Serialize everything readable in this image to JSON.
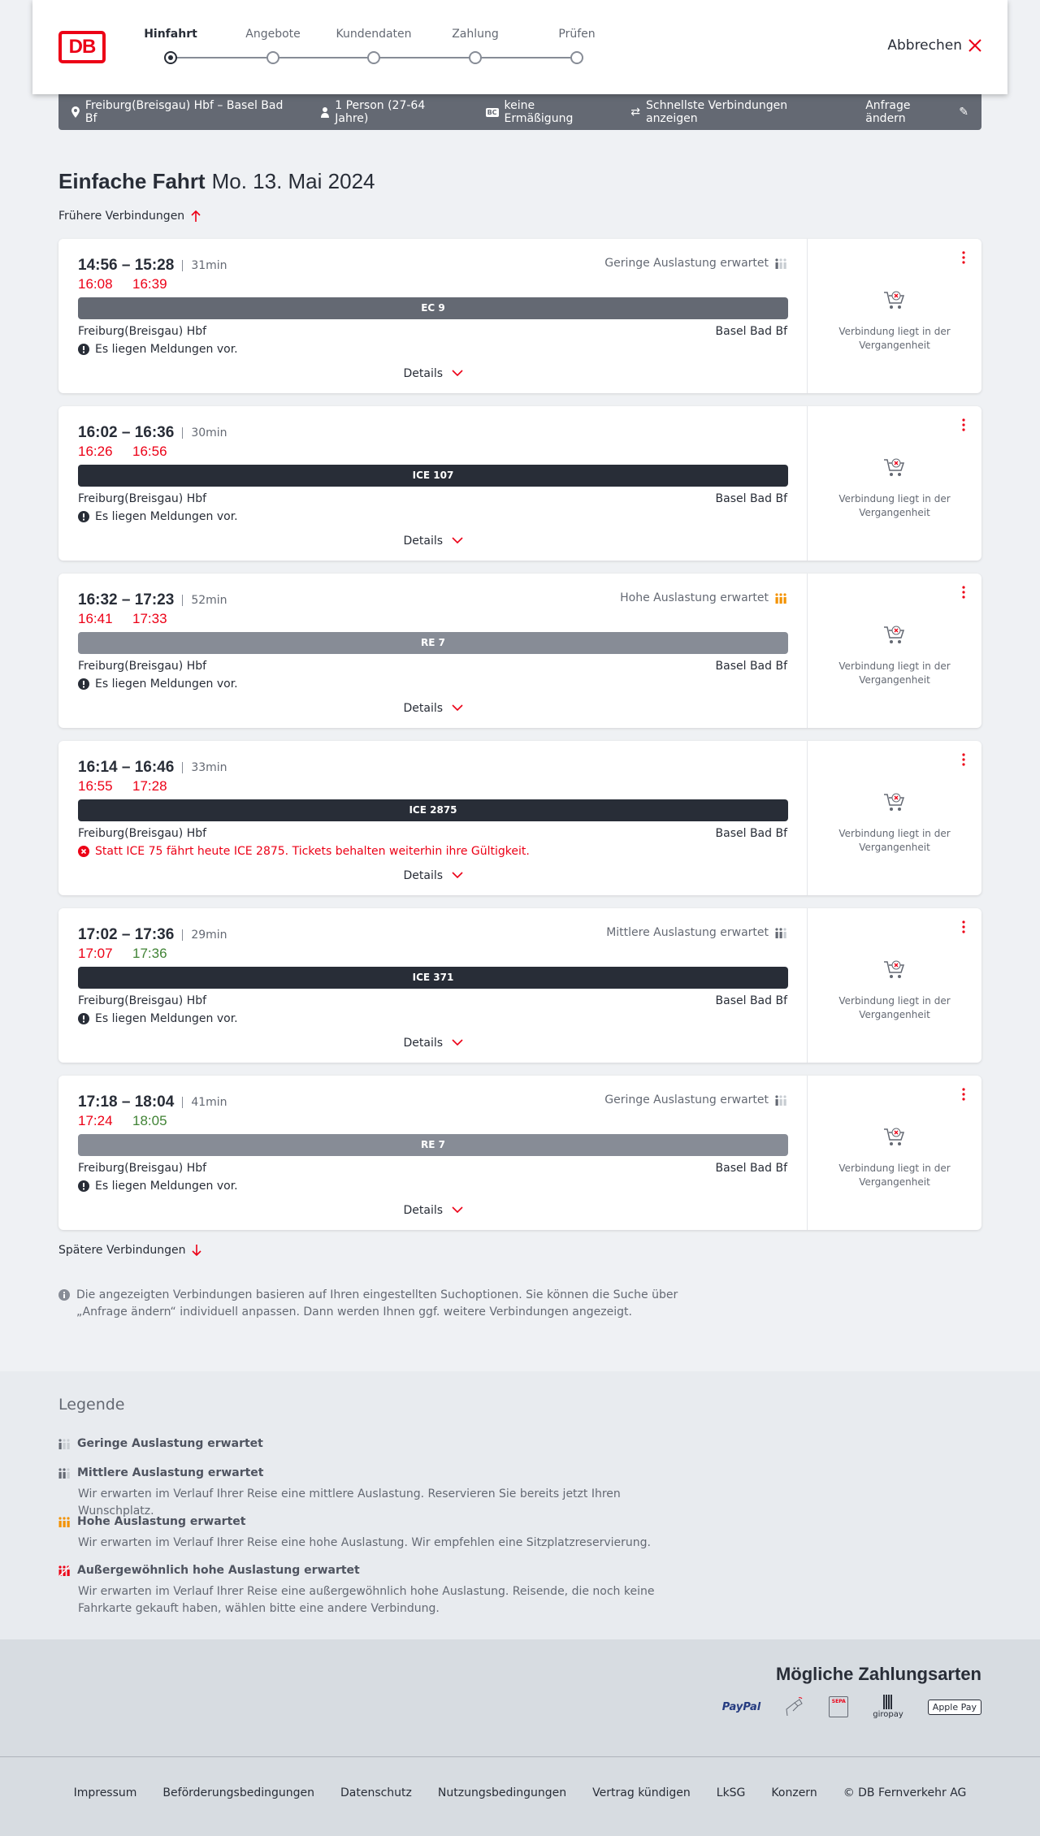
{
  "header": {
    "logo": "DB",
    "steps": [
      "Hinfahrt",
      "Angebote",
      "Kundendaten",
      "Zahlung",
      "Prüfen"
    ],
    "active_step": 0,
    "cancel": "Abbrechen"
  },
  "infobar": {
    "route": "Freiburg(Breisgau) Hbf – Basel Bad Bf",
    "persons": "1 Person (27-64 Jahre)",
    "discount_badge": "BC",
    "discount": "keine Ermäßigung",
    "option": "Schnellste Verbindungen anzeigen",
    "edit": "Anfrage ändern"
  },
  "title": {
    "type": "Einfache Fahrt",
    "date": "Mo. 13. Mai 2024"
  },
  "earlier": "Frühere Verbindungen",
  "later": "Spätere Verbindungen",
  "colors": {
    "red": "#ec0016",
    "green": "#408335",
    "orange": "#f39200"
  },
  "connections": [
    {
      "times": "14:56 – 15:28",
      "duration": "31min",
      "rt_dep": "16:08",
      "rt_arr": "16:39",
      "rt_dep_color": "#ec0016",
      "rt_arr_color": "#ec0016",
      "load": "Geringe Auslastung erwartet",
      "load_level": 1,
      "train": "EC 9",
      "bar_color": "#646973",
      "from": "Freiburg(Breisgau) Hbf",
      "to": "Basel Bad Bf",
      "message": "Es liegen Meldungen vor.",
      "message_type": "info",
      "details": "Details",
      "status": "Verbindung liegt in der Vergangenheit"
    },
    {
      "times": "16:02 – 16:36",
      "duration": "30min",
      "rt_dep": "16:26",
      "rt_arr": "16:56",
      "rt_dep_color": "#ec0016",
      "rt_arr_color": "#ec0016",
      "load": "",
      "load_level": 0,
      "train": "ICE 107",
      "bar_color": "#282d37",
      "from": "Freiburg(Breisgau) Hbf",
      "to": "Basel Bad Bf",
      "message": "Es liegen Meldungen vor.",
      "message_type": "info",
      "details": "Details",
      "status": "Verbindung liegt in der Vergangenheit"
    },
    {
      "times": "16:32 – 17:23",
      "duration": "52min",
      "rt_dep": "16:41",
      "rt_arr": "17:33",
      "rt_dep_color": "#ec0016",
      "rt_arr_color": "#ec0016",
      "load": "Hohe Auslastung erwartet",
      "load_level": 3,
      "train": "RE 7",
      "bar_color": "#878c96",
      "from": "Freiburg(Breisgau) Hbf",
      "to": "Basel Bad Bf",
      "message": "Es liegen Meldungen vor.",
      "message_type": "info",
      "details": "Details",
      "status": "Verbindung liegt in der Vergangenheit"
    },
    {
      "times": "16:14 – 16:46",
      "duration": "33min",
      "rt_dep": "16:55",
      "rt_arr": "17:28",
      "rt_dep_color": "#ec0016",
      "rt_arr_color": "#ec0016",
      "load": "",
      "load_level": 0,
      "train": "ICE 2875",
      "bar_color": "#282d37",
      "from": "Freiburg(Breisgau) Hbf",
      "to": "Basel Bad Bf",
      "message": "Statt ICE 75 fährt heute ICE 2875. Tickets behalten weiterhin ihre Gültigkeit.",
      "message_type": "error",
      "details": "Details",
      "status": "Verbindung liegt in der Vergangenheit"
    },
    {
      "times": "17:02 – 17:36",
      "duration": "29min",
      "rt_dep": "17:07",
      "rt_arr": "17:36",
      "rt_dep_color": "#ec0016",
      "rt_arr_color": "#408335",
      "load": "Mittlere Auslastung erwartet",
      "load_level": 2,
      "train": "ICE 371",
      "bar_color": "#282d37",
      "from": "Freiburg(Breisgau) Hbf",
      "to": "Basel Bad Bf",
      "message": "Es liegen Meldungen vor.",
      "message_type": "info",
      "details": "Details",
      "status": "Verbindung liegt in der Vergangenheit"
    },
    {
      "times": "17:18 – 18:04",
      "duration": "41min",
      "rt_dep": "17:24",
      "rt_arr": "18:05",
      "rt_dep_color": "#ec0016",
      "rt_arr_color": "#408335",
      "load": "Geringe Auslastung erwartet",
      "load_level": 1,
      "train": "RE 7",
      "bar_color": "#878c96",
      "from": "Freiburg(Breisgau) Hbf",
      "to": "Basel Bad Bf",
      "message": "Es liegen Meldungen vor.",
      "message_type": "info",
      "details": "Details",
      "status": "Verbindung liegt in der Vergangenheit"
    }
  ],
  "note": "Die angezeigten Verbindungen basieren auf Ihren eingestellten Suchoptionen. Sie können die Suche über „Anfrage ändern“ individuell anpassen. Dann werden Ihnen ggf. weitere Verbindungen angezeigt.",
  "legend": {
    "title": "Legende",
    "items": [
      {
        "title": "Geringe Auslastung erwartet",
        "desc": "",
        "level": 1
      },
      {
        "title": "Mittlere Auslastung erwartet",
        "desc": "Wir erwarten im Verlauf Ihrer Reise eine mittlere Auslastung. Reservieren Sie bereits jetzt Ihren Wunschplatz.",
        "level": 2
      },
      {
        "title": "Hohe Auslastung erwartet",
        "desc": "Wir erwarten im Verlauf Ihrer Reise eine hohe Auslastung. Wir empfehlen eine Sitzplatzreservierung.",
        "level": 3
      },
      {
        "title": "Außergewöhnlich hohe Auslastung erwartet",
        "desc": "Wir erwarten im Verlauf Ihrer Reise eine außergewöhnlich hohe Auslastung. Reisende, die noch keine Fahrkarte gekauft haben, wählen bitte eine andere Verbindung.",
        "level": 4
      }
    ]
  },
  "payment": {
    "title": "Mögliche Zahlungsarten",
    "methods": [
      "PayPal",
      "Kreditkarte",
      "SEPA",
      "giropay",
      "Apple Pay"
    ]
  },
  "footer": [
    "Impressum",
    "Beförderungsbedingungen",
    "Datenschutz",
    "Nutzungsbedingungen",
    "Vertrag kündigen",
    "LkSG",
    "Konzern",
    "© DB Fernverkehr AG"
  ]
}
